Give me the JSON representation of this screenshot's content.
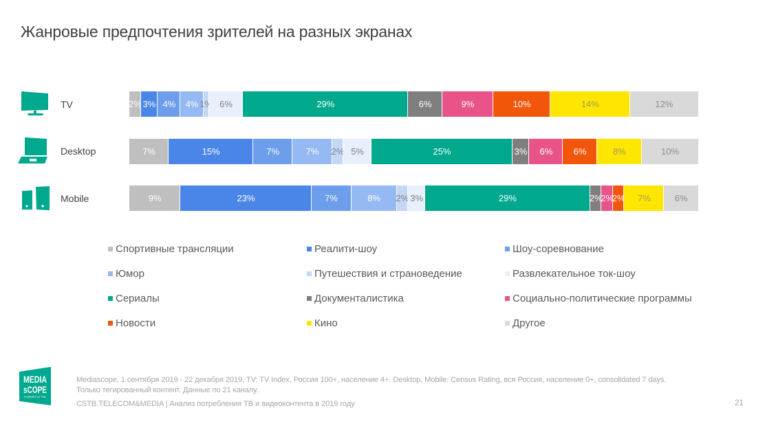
{
  "title": "Жанровые предпочтения зрителей на разных экранах",
  "rows": [
    {
      "label": "TV",
      "icon": "tv-icon"
    },
    {
      "label": "Desktop",
      "icon": "laptop-icon"
    },
    {
      "label": "Mobile",
      "icon": "mobile-devices-icon"
    }
  ],
  "chart_data": {
    "type": "bar",
    "orientation": "horizontal",
    "stacked": true,
    "normalized_100": true,
    "title": "Жанровые предпочтения зрителей на разных экранах",
    "xlabel": "",
    "ylabel": "",
    "unit": "%",
    "categories": [
      "TV",
      "Desktop",
      "Mobile"
    ],
    "legend_position": "bottom",
    "grid": false,
    "series": [
      {
        "name": "Спортивные трансляции",
        "values": [
          2,
          7,
          9
        ],
        "color": "#bfbfbf",
        "label_color": "#ffffff"
      },
      {
        "name": "Реалити-шоу",
        "values": [
          3,
          15,
          23
        ],
        "color": "#4a86e8",
        "label_color": "#ffffff"
      },
      {
        "name": "Шоу-соревнование",
        "values": [
          4,
          7,
          7
        ],
        "color": "#6d9eeb",
        "label_color": "#ffffff"
      },
      {
        "name": "Юмор",
        "values": [
          4,
          7,
          8
        ],
        "color": "#95b9f2",
        "label_color": "#ffffff"
      },
      {
        "name": "Путешествия и страноведение",
        "values": [
          1,
          2,
          2
        ],
        "color": "#c4d7f7",
        "label_color": "#7f7f7f"
      },
      {
        "name": "Развлекательное ток-шоу",
        "values": [
          6,
          5,
          3
        ],
        "color": "#e8f0fc",
        "label_color": "#7f7f7f"
      },
      {
        "name": "Сериалы",
        "values": [
          29,
          25,
          29
        ],
        "color": "#00a88e",
        "label_color": "#ffffff"
      },
      {
        "name": "Документалистика",
        "values": [
          6,
          3,
          2
        ],
        "color": "#7f7f7f",
        "label_color": "#ffffff"
      },
      {
        "name": "Социально-политические программы",
        "values": [
          9,
          6,
          2
        ],
        "color": "#e8538a",
        "label_color": "#ffffff"
      },
      {
        "name": "Новости",
        "values": [
          10,
          6,
          2
        ],
        "color": "#f2560a",
        "label_color": "#ffffff"
      },
      {
        "name": "Кино",
        "values": [
          14,
          8,
          7
        ],
        "color": "#ffe600",
        "label_color": "#a39d55"
      },
      {
        "name": "Другое",
        "values": [
          12,
          10,
          6
        ],
        "color": "#d9d9d9",
        "label_color": "#8c8c8c"
      }
    ]
  },
  "footer": {
    "logo_line1": "MEDIA",
    "logo_line2": "sCOPE",
    "logo_tagline": "POWERED BY TNS",
    "source_line1": "Mediascope, 1 сентября 2019 - 22 декабря 2019, TV: TV Index, Россия 100+, население 4+. Desktop, Mobile: Census Rating, вся Россия, население 0+, consolidated 7 days.",
    "source_line2": "Только тегированный контент. Данные по 21 каналу.",
    "brand_line": "CSTB.TELECOM&MEDIA | Анализ потребления ТВ и видеоконтента в 2019 году",
    "page_number": "21"
  },
  "brand_color": "#00a88e"
}
